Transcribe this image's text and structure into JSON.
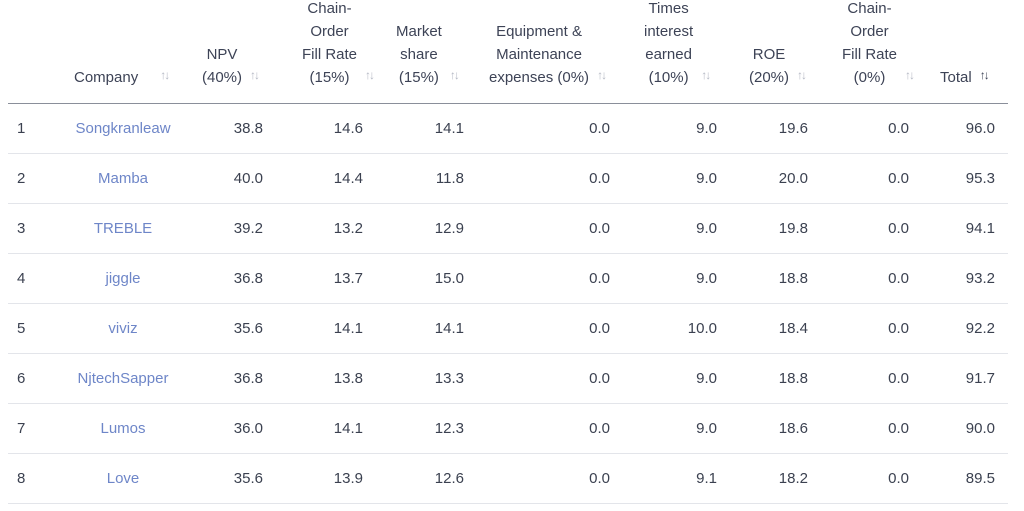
{
  "columns": [
    {
      "label": "Company",
      "sort": "↑↓"
    },
    {
      "label": "NPV\n(40%)",
      "sort": "↑↓"
    },
    {
      "label": "Chain-\nOrder\nFill Rate\n(15%)",
      "sort": "↑↓"
    },
    {
      "label": "Market\nshare\n(15%)",
      "sort": "↑↓"
    },
    {
      "label": "Equipment &\nMaintenance\nexpenses (0%)",
      "sort": "↑↓"
    },
    {
      "label": "Times\ninterest\nearned\n(10%)",
      "sort": "↑↓"
    },
    {
      "label": "ROE\n(20%)",
      "sort": "↑↓"
    },
    {
      "label": "Chain-\nOrder\nFill Rate\n(0%)",
      "sort": "↑↓"
    },
    {
      "label": "Total",
      "sort": "↑↓"
    }
  ],
  "rows": [
    {
      "rank": "1",
      "company": "Songkranleaw",
      "npv": "38.8",
      "fill": "14.6",
      "share": "14.1",
      "equip": "0.0",
      "tie": "9.0",
      "roe": "19.6",
      "fill0": "0.0",
      "total": "96.0"
    },
    {
      "rank": "2",
      "company": "Mamba",
      "npv": "40.0",
      "fill": "14.4",
      "share": "11.8",
      "equip": "0.0",
      "tie": "9.0",
      "roe": "20.0",
      "fill0": "0.0",
      "total": "95.3"
    },
    {
      "rank": "3",
      "company": "TREBLE",
      "npv": "39.2",
      "fill": "13.2",
      "share": "12.9",
      "equip": "0.0",
      "tie": "9.0",
      "roe": "19.8",
      "fill0": "0.0",
      "total": "94.1"
    },
    {
      "rank": "4",
      "company": "jiggle",
      "npv": "36.8",
      "fill": "13.7",
      "share": "15.0",
      "equip": "0.0",
      "tie": "9.0",
      "roe": "18.8",
      "fill0": "0.0",
      "total": "93.2"
    },
    {
      "rank": "5",
      "company": "viviz",
      "npv": "35.6",
      "fill": "14.1",
      "share": "14.1",
      "equip": "0.0",
      "tie": "10.0",
      "roe": "18.4",
      "fill0": "0.0",
      "total": "92.2"
    },
    {
      "rank": "6",
      "company": "NjtechSapper",
      "npv": "36.8",
      "fill": "13.8",
      "share": "13.3",
      "equip": "0.0",
      "tie": "9.0",
      "roe": "18.8",
      "fill0": "0.0",
      "total": "91.7"
    },
    {
      "rank": "7",
      "company": "Lumos",
      "npv": "36.0",
      "fill": "14.1",
      "share": "12.3",
      "equip": "0.0",
      "tie": "9.0",
      "roe": "18.6",
      "fill0": "0.0",
      "total": "90.0"
    },
    {
      "rank": "8",
      "company": "Love",
      "npv": "35.6",
      "fill": "13.9",
      "share": "12.6",
      "equip": "0.0",
      "tie": "9.1",
      "roe": "18.2",
      "fill0": "0.0",
      "total": "89.5"
    }
  ]
}
